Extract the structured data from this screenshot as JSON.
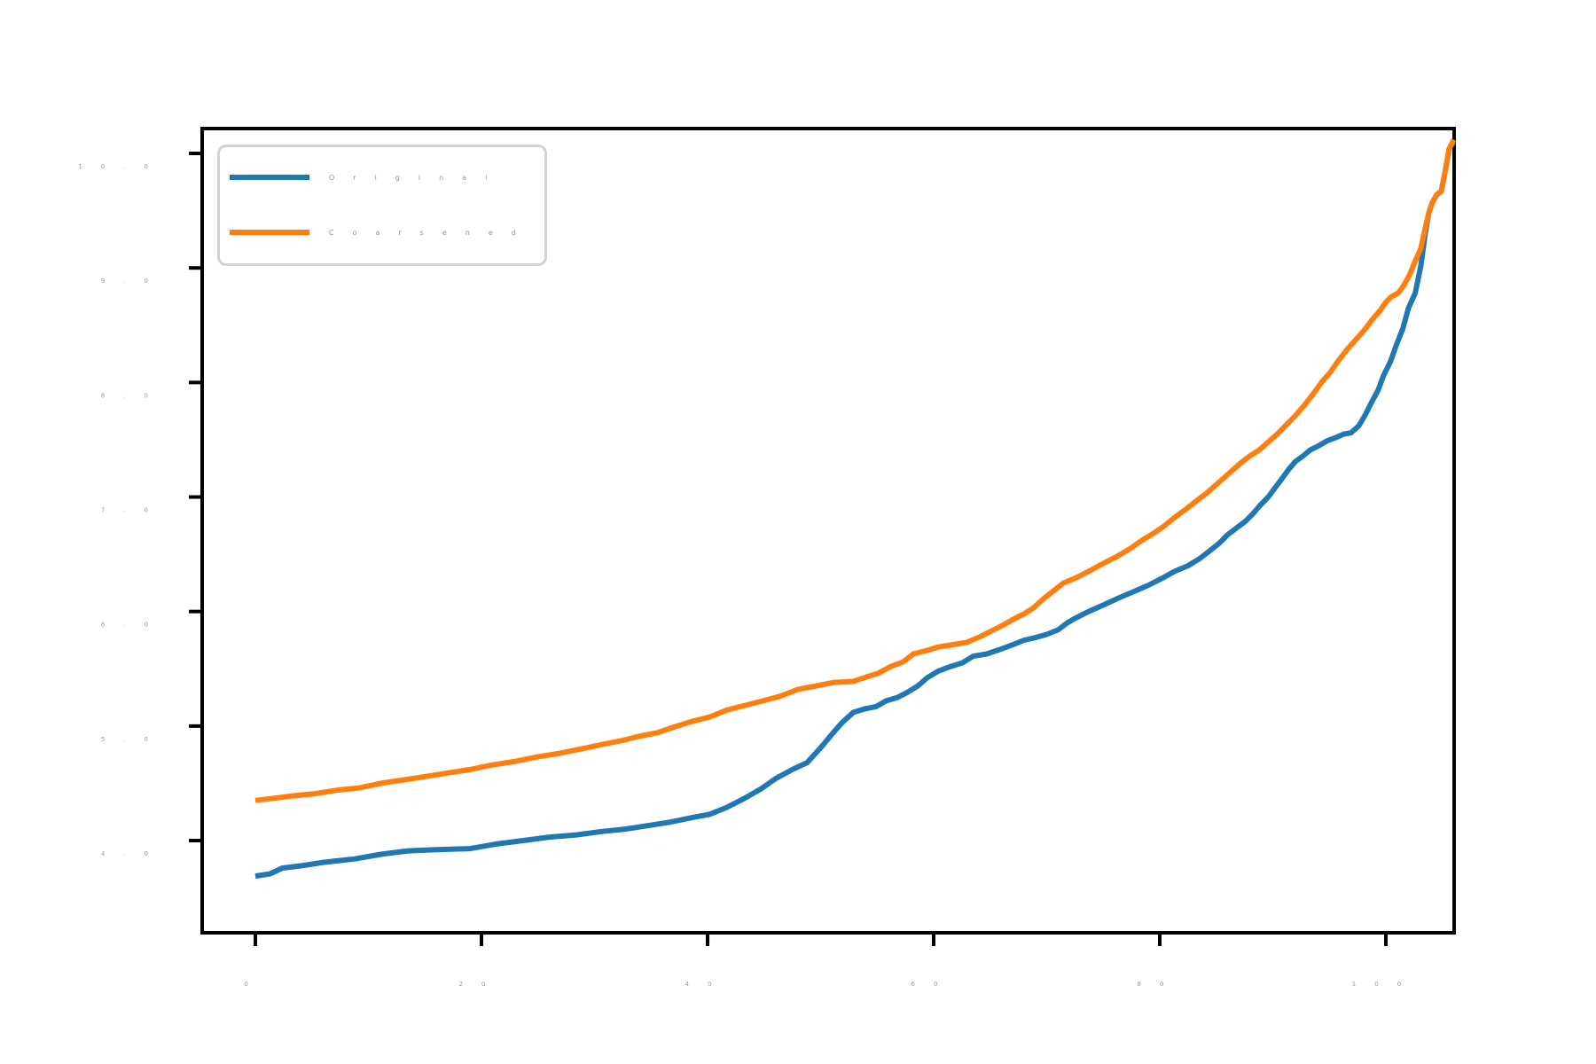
{
  "figure": {
    "background": "#ffffff",
    "frame_color": "#000000",
    "tick_text_color": "#9a9a9a",
    "legend_text_color": "#919191"
  },
  "legend": {
    "position": "upper left",
    "items": [
      {
        "label": "Original",
        "color": "#1f77b4"
      },
      {
        "label": "Coarsened",
        "color": "#ff7f0e"
      }
    ]
  },
  "chart_data": {
    "type": "line",
    "title": "",
    "xlabel": "",
    "ylabel": "",
    "grid": false,
    "legend_position": "upper left",
    "xlim": [
      -4.71,
      106.04
    ],
    "ylim": [
      3.195,
      10.217
    ],
    "xticks": {
      "values": [
        0,
        20,
        40,
        60,
        80,
        100
      ],
      "labels": [
        "0",
        "20",
        "40",
        "60",
        "80",
        "100"
      ]
    },
    "yticks": {
      "values": [
        4,
        5,
        6,
        7,
        8,
        9,
        10
      ],
      "labels": [
        "4.0",
        "5.0",
        "6.0",
        "7.0",
        "8.0",
        "9.0",
        "10.0"
      ]
    },
    "series": [
      {
        "name": "Original",
        "color": "#1f77b4",
        "points": [
          [
            0.0,
            3.69
          ],
          [
            1.3,
            3.71
          ],
          [
            2.4,
            3.76
          ],
          [
            4.1,
            3.78
          ],
          [
            6.0,
            3.81
          ],
          [
            8.8,
            3.84
          ],
          [
            11.1,
            3.88
          ],
          [
            13.5,
            3.91
          ],
          [
            15.8,
            3.92
          ],
          [
            19.0,
            3.93
          ],
          [
            21.3,
            3.97
          ],
          [
            23.7,
            4.0
          ],
          [
            26.0,
            4.03
          ],
          [
            28.4,
            4.05
          ],
          [
            30.7,
            4.08
          ],
          [
            32.7,
            4.1
          ],
          [
            34.7,
            4.13
          ],
          [
            36.6,
            4.16
          ],
          [
            38.6,
            4.2
          ],
          [
            40.2,
            4.23
          ],
          [
            41.7,
            4.29
          ],
          [
            43.3,
            4.37
          ],
          [
            44.7,
            4.45
          ],
          [
            46.0,
            4.54
          ],
          [
            47.5,
            4.62
          ],
          [
            48.8,
            4.68
          ],
          [
            50.0,
            4.81
          ],
          [
            51.1,
            4.94
          ],
          [
            51.9,
            5.03
          ],
          [
            52.9,
            5.12
          ],
          [
            53.9,
            5.15
          ],
          [
            54.9,
            5.17
          ],
          [
            55.8,
            5.22
          ],
          [
            56.8,
            5.25
          ],
          [
            57.6,
            5.29
          ],
          [
            58.6,
            5.35
          ],
          [
            59.4,
            5.42
          ],
          [
            60.4,
            5.48
          ],
          [
            61.5,
            5.52
          ],
          [
            62.5,
            5.55
          ],
          [
            63.5,
            5.61
          ],
          [
            64.7,
            5.63
          ],
          [
            65.9,
            5.67
          ],
          [
            67.0,
            5.71
          ],
          [
            68.0,
            5.75
          ],
          [
            68.9,
            5.77
          ],
          [
            70.0,
            5.8
          ],
          [
            71.0,
            5.84
          ],
          [
            71.8,
            5.9
          ],
          [
            72.5,
            5.94
          ],
          [
            73.7,
            6.0
          ],
          [
            75.1,
            6.06
          ],
          [
            76.4,
            6.12
          ],
          [
            77.6,
            6.17
          ],
          [
            79.0,
            6.23
          ],
          [
            80.2,
            6.29
          ],
          [
            81.3,
            6.35
          ],
          [
            82.5,
            6.4
          ],
          [
            83.5,
            6.46
          ],
          [
            84.3,
            6.52
          ],
          [
            85.3,
            6.6
          ],
          [
            86.0,
            6.67
          ],
          [
            86.8,
            6.73
          ],
          [
            87.6,
            6.79
          ],
          [
            88.2,
            6.85
          ],
          [
            88.9,
            6.93
          ],
          [
            89.6,
            7.0
          ],
          [
            90.2,
            7.08
          ],
          [
            90.8,
            7.16
          ],
          [
            91.4,
            7.24
          ],
          [
            92.0,
            7.31
          ],
          [
            92.7,
            7.36
          ],
          [
            93.3,
            7.41
          ],
          [
            94.1,
            7.45
          ],
          [
            94.8,
            7.49
          ],
          [
            95.6,
            7.52
          ],
          [
            96.3,
            7.55
          ],
          [
            96.9,
            7.56
          ],
          [
            97.6,
            7.62
          ],
          [
            98.2,
            7.72
          ],
          [
            98.7,
            7.82
          ],
          [
            99.3,
            7.93
          ],
          [
            99.8,
            8.06
          ],
          [
            100.4,
            8.18
          ],
          [
            100.9,
            8.32
          ],
          [
            101.5,
            8.47
          ],
          [
            102.0,
            8.65
          ],
          [
            102.6,
            8.78
          ],
          [
            103.1,
            9.02
          ],
          [
            103.5,
            9.31
          ],
          [
            103.8,
            9.48
          ],
          [
            104.1,
            9.57
          ],
          [
            104.5,
            9.64
          ],
          [
            104.9,
            9.67
          ],
          [
            105.3,
            9.87
          ],
          [
            105.6,
            10.04
          ],
          [
            106.0,
            10.1
          ]
        ]
      },
      {
        "name": "Coarsened",
        "color": "#ff7f0e",
        "points": [
          [
            0.0,
            4.35
          ],
          [
            1.7,
            4.37
          ],
          [
            3.3,
            4.39
          ],
          [
            5.3,
            4.41
          ],
          [
            7.2,
            4.44
          ],
          [
            9.2,
            4.46
          ],
          [
            11.1,
            4.5
          ],
          [
            13.1,
            4.53
          ],
          [
            15.1,
            4.56
          ],
          [
            17.0,
            4.59
          ],
          [
            19.0,
            4.62
          ],
          [
            20.9,
            4.66
          ],
          [
            22.9,
            4.69
          ],
          [
            24.9,
            4.73
          ],
          [
            26.8,
            4.76
          ],
          [
            28.8,
            4.8
          ],
          [
            30.7,
            4.84
          ],
          [
            32.3,
            4.87
          ],
          [
            33.9,
            4.91
          ],
          [
            35.5,
            4.94
          ],
          [
            37.0,
            4.99
          ],
          [
            38.6,
            5.04
          ],
          [
            40.2,
            5.08
          ],
          [
            41.7,
            5.14
          ],
          [
            43.3,
            5.18
          ],
          [
            44.9,
            5.22
          ],
          [
            46.4,
            5.26
          ],
          [
            48.0,
            5.32
          ],
          [
            49.6,
            5.35
          ],
          [
            51.1,
            5.38
          ],
          [
            52.9,
            5.39
          ],
          [
            54.1,
            5.43
          ],
          [
            55.1,
            5.46
          ],
          [
            56.2,
            5.52
          ],
          [
            57.3,
            5.56
          ],
          [
            58.2,
            5.63
          ],
          [
            59.4,
            5.66
          ],
          [
            60.4,
            5.69
          ],
          [
            61.7,
            5.71
          ],
          [
            62.9,
            5.73
          ],
          [
            64.1,
            5.78
          ],
          [
            65.3,
            5.84
          ],
          [
            66.3,
            5.89
          ],
          [
            67.2,
            5.94
          ],
          [
            68.0,
            5.98
          ],
          [
            68.8,
            6.03
          ],
          [
            69.7,
            6.11
          ],
          [
            70.6,
            6.18
          ],
          [
            71.5,
            6.25
          ],
          [
            72.5,
            6.29
          ],
          [
            73.7,
            6.35
          ],
          [
            75.0,
            6.42
          ],
          [
            76.2,
            6.48
          ],
          [
            77.4,
            6.55
          ],
          [
            78.4,
            6.62
          ],
          [
            79.4,
            6.68
          ],
          [
            80.3,
            6.74
          ],
          [
            81.3,
            6.82
          ],
          [
            82.4,
            6.9
          ],
          [
            83.3,
            6.97
          ],
          [
            84.1,
            7.03
          ],
          [
            84.9,
            7.1
          ],
          [
            85.6,
            7.16
          ],
          [
            86.4,
            7.23
          ],
          [
            87.2,
            7.3
          ],
          [
            88.0,
            7.36
          ],
          [
            88.8,
            7.41
          ],
          [
            89.6,
            7.48
          ],
          [
            90.4,
            7.55
          ],
          [
            91.1,
            7.62
          ],
          [
            91.9,
            7.7
          ],
          [
            92.7,
            7.79
          ],
          [
            93.5,
            7.89
          ],
          [
            94.3,
            8.0
          ],
          [
            95.1,
            8.09
          ],
          [
            95.8,
            8.19
          ],
          [
            96.6,
            8.29
          ],
          [
            97.4,
            8.38
          ],
          [
            98.2,
            8.47
          ],
          [
            98.8,
            8.55
          ],
          [
            99.5,
            8.63
          ],
          [
            100.0,
            8.7
          ],
          [
            100.5,
            8.75
          ],
          [
            101.1,
            8.78
          ],
          [
            101.6,
            8.85
          ],
          [
            102.1,
            8.94
          ],
          [
            102.6,
            9.06
          ],
          [
            103.1,
            9.17
          ],
          [
            103.4,
            9.31
          ],
          [
            103.8,
            9.48
          ],
          [
            104.1,
            9.57
          ],
          [
            104.5,
            9.64
          ],
          [
            104.9,
            9.67
          ],
          [
            105.3,
            9.87
          ],
          [
            105.6,
            10.04
          ],
          [
            106.0,
            10.12
          ]
        ]
      }
    ]
  }
}
